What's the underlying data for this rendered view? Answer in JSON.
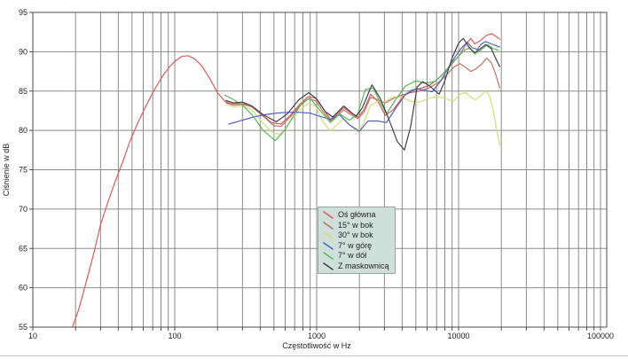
{
  "chart_data": {
    "type": "line",
    "title": "",
    "xlabel": "Częstotliwość w Hz",
    "ylabel": "Ciśnienie w dB",
    "x_scale": "log",
    "xlim": [
      10,
      100000
    ],
    "ylim": [
      55,
      95
    ],
    "x_ticks": [
      10,
      100,
      1000,
      10000,
      100000
    ],
    "x_tick_labels": [
      "10",
      "100",
      "1000",
      "10000",
      "100000"
    ],
    "y_ticks": [
      55,
      60,
      65,
      70,
      75,
      80,
      85,
      90,
      95
    ],
    "grid": "major-horizontal + log-minor-vertical",
    "legend_position": "center-bottom",
    "colors": {
      "grid": "#8c8c8c",
      "frame": "#4d4d4d",
      "tick_text": "#222222",
      "legend_bg": "#cfe0da",
      "legend_border": "#93a7a2"
    },
    "series": [
      {
        "name": "Oś główna",
        "color": "#d85c5c",
        "points": [
          [
            19,
            55
          ],
          [
            21,
            57.2
          ],
          [
            24,
            61
          ],
          [
            27,
            64.5
          ],
          [
            30,
            68
          ],
          [
            34,
            71
          ],
          [
            38,
            73.5
          ],
          [
            43,
            76
          ],
          [
            48,
            78.5
          ],
          [
            55,
            81
          ],
          [
            63,
            83.2
          ],
          [
            72,
            85.2
          ],
          [
            82,
            86.9
          ],
          [
            92,
            88.1
          ],
          [
            102,
            88.9
          ],
          [
            112,
            89.4
          ],
          [
            124,
            89.5
          ],
          [
            138,
            89.1
          ],
          [
            155,
            88.2
          ],
          [
            175,
            86.7
          ],
          [
            200,
            84.8
          ],
          [
            225,
            83.7
          ],
          [
            250,
            83.4
          ],
          [
            285,
            83.4
          ],
          [
            330,
            83.3
          ],
          [
            400,
            82.2
          ],
          [
            480,
            81
          ],
          [
            560,
            80.8
          ],
          [
            650,
            81.9
          ],
          [
            760,
            83.3
          ],
          [
            870,
            84.3
          ],
          [
            980,
            84.1
          ],
          [
            1100,
            82.9
          ],
          [
            1250,
            81.4
          ],
          [
            1400,
            82.1
          ],
          [
            1550,
            82.9
          ],
          [
            1750,
            82.2
          ],
          [
            1950,
            81.7
          ],
          [
            2150,
            82.6
          ],
          [
            2400,
            84.6
          ],
          [
            2700,
            83.7
          ],
          [
            3050,
            81.9
          ],
          [
            3500,
            82.7
          ],
          [
            4000,
            84.2
          ],
          [
            4600,
            85.1
          ],
          [
            5300,
            85.3
          ],
          [
            6200,
            85.7
          ],
          [
            7200,
            86.6
          ],
          [
            8200,
            87.6
          ],
          [
            9200,
            88.7
          ],
          [
            10200,
            89.6
          ],
          [
            11200,
            90.9
          ],
          [
            12200,
            91.7
          ],
          [
            13000,
            91
          ],
          [
            14200,
            91.4
          ],
          [
            15800,
            92.1
          ],
          [
            17200,
            92.3
          ],
          [
            18500,
            91.9
          ],
          [
            19500,
            91.6
          ]
        ]
      },
      {
        "name": "15° w bok",
        "color": "#bc7468",
        "points": [
          [
            230,
            83.5
          ],
          [
            260,
            83.2
          ],
          [
            300,
            83.3
          ],
          [
            350,
            83
          ],
          [
            420,
            81.8
          ],
          [
            500,
            80.6
          ],
          [
            560,
            80.5
          ],
          [
            650,
            81.7
          ],
          [
            760,
            83.1
          ],
          [
            870,
            84
          ],
          [
            980,
            83.8
          ],
          [
            1100,
            82.5
          ],
          [
            1250,
            81.2
          ],
          [
            1400,
            81.9
          ],
          [
            1550,
            82.6
          ],
          [
            1750,
            82
          ],
          [
            1950,
            81.5
          ],
          [
            2150,
            82.3
          ],
          [
            2400,
            84.2
          ],
          [
            2700,
            83.9
          ],
          [
            3050,
            83.5
          ],
          [
            3500,
            84.1
          ],
          [
            4000,
            84.5
          ],
          [
            4600,
            84.8
          ],
          [
            5300,
            85
          ],
          [
            6200,
            85.4
          ],
          [
            7200,
            86.1
          ],
          [
            8200,
            87
          ],
          [
            9200,
            88
          ],
          [
            10200,
            88.5
          ],
          [
            11200,
            88
          ],
          [
            12200,
            87.5
          ],
          [
            13200,
            87.8
          ],
          [
            14500,
            88.4
          ],
          [
            15800,
            89.2
          ],
          [
            17000,
            88.6
          ],
          [
            18200,
            87.2
          ],
          [
            19500,
            85.4
          ]
        ]
      },
      {
        "name": "30° w bok",
        "color": "#d4dd7a",
        "points": [
          [
            230,
            83.3
          ],
          [
            260,
            83
          ],
          [
            300,
            83.1
          ],
          [
            350,
            82.6
          ],
          [
            420,
            80.9
          ],
          [
            490,
            79.7
          ],
          [
            560,
            79.5
          ],
          [
            650,
            81.1
          ],
          [
            760,
            82.6
          ],
          [
            870,
            83.4
          ],
          [
            980,
            83.1
          ],
          [
            1100,
            81.2
          ],
          [
            1250,
            79.9
          ],
          [
            1400,
            80.8
          ],
          [
            1550,
            81.5
          ],
          [
            1750,
            80.5
          ],
          [
            1950,
            79.8
          ],
          [
            2150,
            81
          ],
          [
            2400,
            83.2
          ],
          [
            2700,
            83.7
          ],
          [
            3050,
            83.7
          ],
          [
            3500,
            84.3
          ],
          [
            4000,
            84.2
          ],
          [
            4600,
            83.7
          ],
          [
            5300,
            83.6
          ],
          [
            6200,
            84.1
          ],
          [
            7200,
            84.3
          ],
          [
            8200,
            84
          ],
          [
            9200,
            83.7
          ],
          [
            10200,
            84.6
          ],
          [
            11200,
            84.8
          ],
          [
            12200,
            84.2
          ],
          [
            13200,
            83.9
          ],
          [
            14500,
            84.5
          ],
          [
            15500,
            85
          ],
          [
            16500,
            84.4
          ],
          [
            17500,
            82.6
          ],
          [
            18500,
            80.2
          ],
          [
            19500,
            78.1
          ]
        ]
      },
      {
        "name": "7° w górę",
        "color": "#4f63c6",
        "points": [
          [
            240,
            80.8
          ],
          [
            300,
            81.3
          ],
          [
            360,
            81.7
          ],
          [
            430,
            82
          ],
          [
            520,
            82.2
          ],
          [
            620,
            82.3
          ],
          [
            750,
            82.3
          ],
          [
            900,
            82.2
          ],
          [
            1050,
            81.8
          ],
          [
            1250,
            81.4
          ],
          [
            1450,
            82
          ],
          [
            1700,
            80.7
          ],
          [
            2000,
            79.9
          ],
          [
            2300,
            81.2
          ],
          [
            2700,
            81.2
          ],
          [
            3100,
            81
          ],
          [
            3600,
            82.8
          ],
          [
            4200,
            84.5
          ],
          [
            5000,
            85.3
          ],
          [
            5800,
            85.1
          ],
          [
            6500,
            84.9
          ],
          [
            7500,
            86.3
          ],
          [
            8500,
            88
          ],
          [
            9500,
            89.4
          ],
          [
            10500,
            90.5
          ],
          [
            11500,
            91.2
          ],
          [
            12500,
            90.5
          ],
          [
            13500,
            90.3
          ],
          [
            14500,
            91
          ],
          [
            15500,
            91.3
          ],
          [
            17000,
            91
          ],
          [
            18200,
            90.8
          ],
          [
            19500,
            90.6
          ]
        ]
      },
      {
        "name": "7° w dół",
        "color": "#58b858",
        "points": [
          [
            225,
            84.5
          ],
          [
            255,
            84
          ],
          [
            300,
            83.2
          ],
          [
            350,
            82
          ],
          [
            420,
            80
          ],
          [
            510,
            78.7
          ],
          [
            600,
            80.1
          ],
          [
            700,
            82.1
          ],
          [
            800,
            83.6
          ],
          [
            900,
            84.1
          ],
          [
            1050,
            82.6
          ],
          [
            1250,
            81
          ],
          [
            1450,
            82.1
          ],
          [
            1700,
            81.3
          ],
          [
            1950,
            82.1
          ],
          [
            2200,
            85.2
          ],
          [
            2500,
            85.4
          ],
          [
            2800,
            83.6
          ],
          [
            3100,
            82.1
          ],
          [
            3600,
            83.9
          ],
          [
            4200,
            85.6
          ],
          [
            5000,
            86.3
          ],
          [
            5800,
            86
          ],
          [
            6800,
            86.2
          ],
          [
            7800,
            87.2
          ],
          [
            8800,
            88.4
          ],
          [
            9800,
            89.3
          ],
          [
            11000,
            90.2
          ],
          [
            12000,
            90.5
          ],
          [
            13000,
            89.7
          ],
          [
            14000,
            90.1
          ],
          [
            15000,
            90.5
          ],
          [
            16000,
            90.9
          ],
          [
            17500,
            90.4
          ],
          [
            19000,
            90.2
          ]
        ]
      },
      {
        "name": "Z maskownicą",
        "color": "#42424a",
        "points": [
          [
            230,
            83.8
          ],
          [
            260,
            83.5
          ],
          [
            300,
            83.6
          ],
          [
            350,
            83.1
          ],
          [
            420,
            82
          ],
          [
            520,
            81.1
          ],
          [
            620,
            82.1
          ],
          [
            750,
            83.9
          ],
          [
            880,
            84.8
          ],
          [
            1000,
            84
          ],
          [
            1150,
            82.4
          ],
          [
            1300,
            81.7
          ],
          [
            1550,
            83.1
          ],
          [
            1750,
            82.3
          ],
          [
            1900,
            81.8
          ],
          [
            2100,
            82.9
          ],
          [
            2450,
            85.8
          ],
          [
            2800,
            84.1
          ],
          [
            3200,
            81.6
          ],
          [
            3700,
            78.6
          ],
          [
            4150,
            77.5
          ],
          [
            4600,
            80.5
          ],
          [
            5100,
            85.5
          ],
          [
            5600,
            86.2
          ],
          [
            6300,
            85.6
          ],
          [
            7300,
            84.6
          ],
          [
            8000,
            86.3
          ],
          [
            9000,
            89.2
          ],
          [
            10000,
            91.1
          ],
          [
            10800,
            91.7
          ],
          [
            12000,
            90.4
          ],
          [
            13000,
            89.9
          ],
          [
            14000,
            90.3
          ],
          [
            15500,
            90.9
          ],
          [
            17000,
            90.4
          ],
          [
            18000,
            89.4
          ],
          [
            19500,
            88.1
          ]
        ]
      }
    ]
  }
}
